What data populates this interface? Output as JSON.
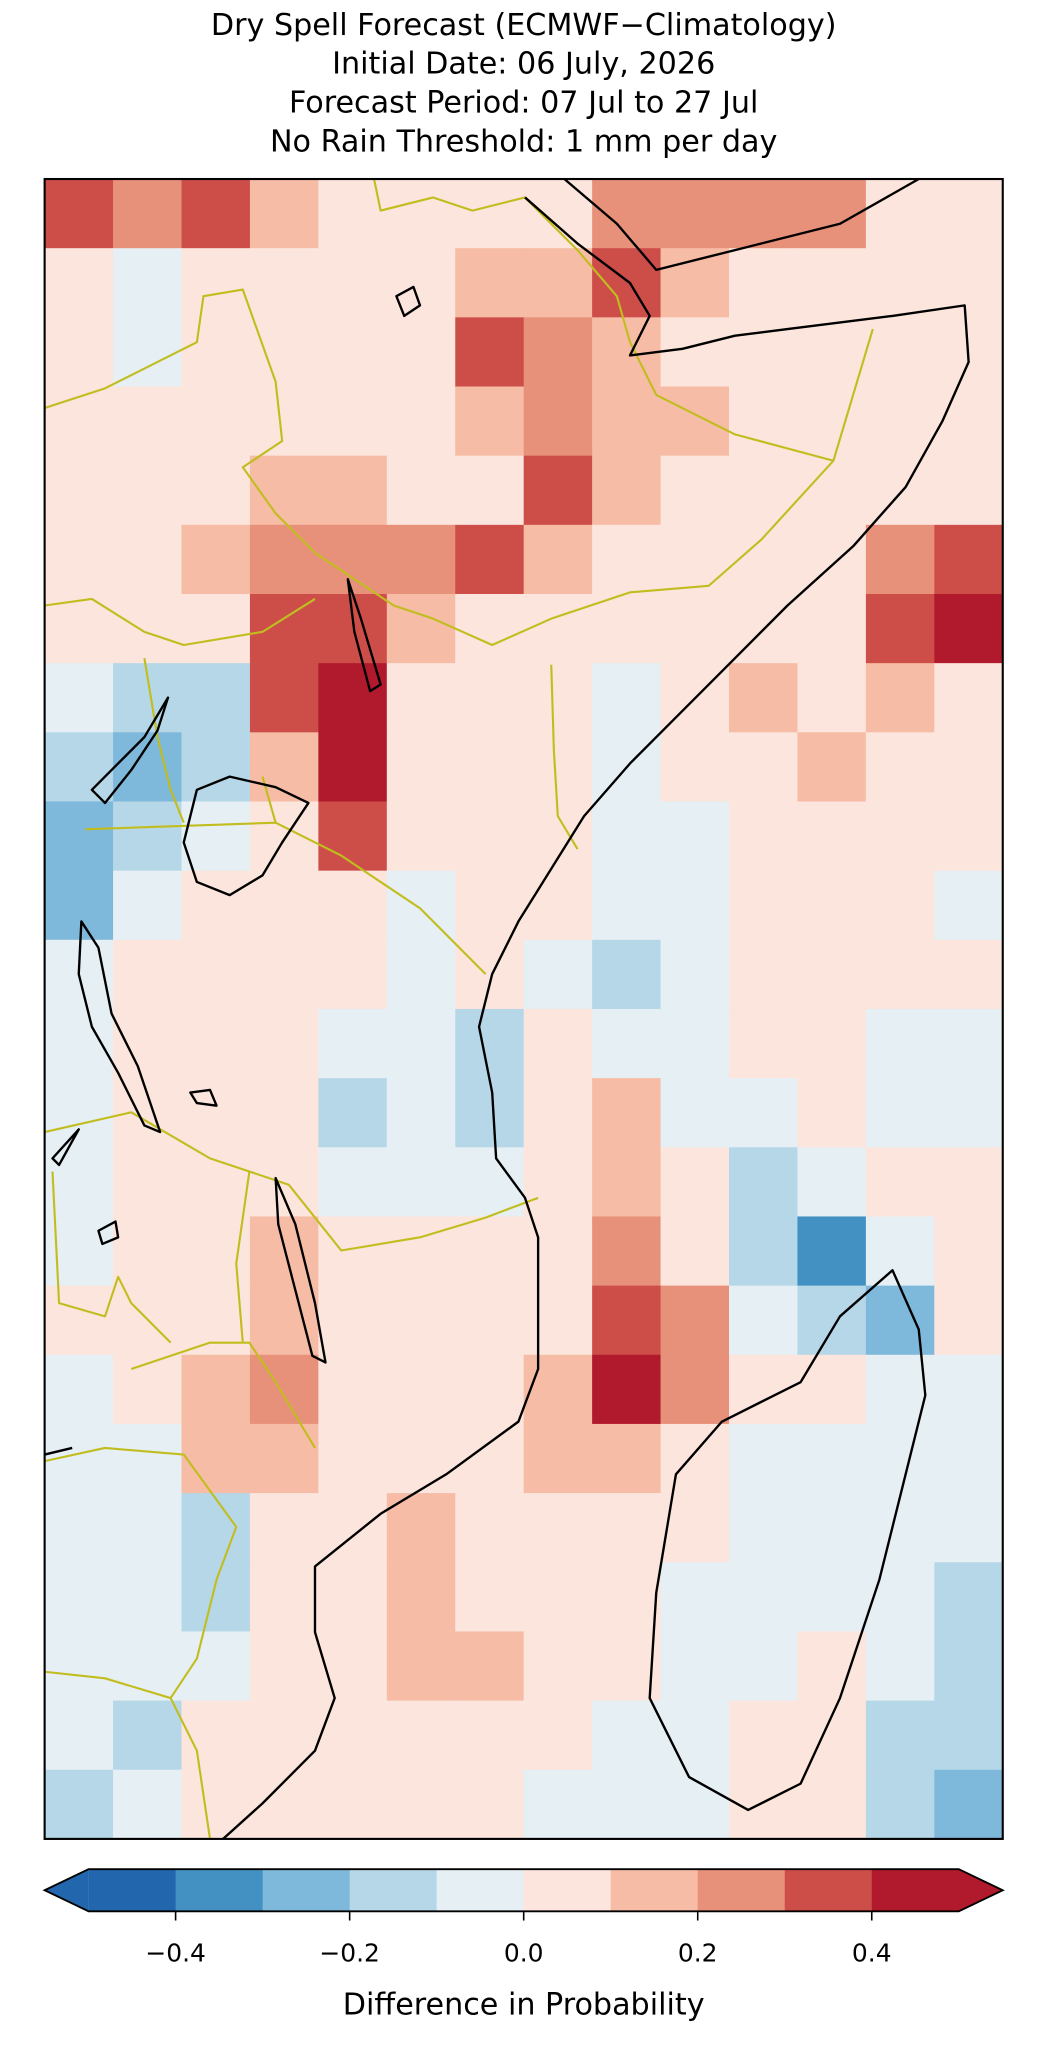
{
  "chart_data": {
    "type": "heatmap",
    "title": [
      "Dry Spell Forecast (ECMWF−Climatology)",
      "Initial Date: 06 July, 2026",
      "Forecast Period: 07 Jul to 27 Jul",
      "No Rain Threshold: 1 mm per day"
    ],
    "values": [
      [
        0.35,
        0.25,
        0.35,
        0.15,
        0.05,
        0.05,
        0.05,
        0.05,
        0.25,
        0.25,
        0.25,
        0.25,
        0.05,
        0.05
      ],
      [
        0.05,
        -0.05,
        0.05,
        0.05,
        0.05,
        0.05,
        0.15,
        0.15,
        0.35,
        0.15,
        0.05,
        0.05,
        0.05,
        0.05
      ],
      [
        0.05,
        -0.05,
        0.05,
        0.05,
        0.05,
        0.05,
        0.35,
        0.25,
        0.15,
        0.05,
        0.05,
        0.05,
        0.05,
        0.05
      ],
      [
        0.05,
        0.05,
        0.05,
        0.05,
        0.05,
        0.05,
        0.15,
        0.25,
        0.15,
        0.15,
        0.05,
        0.05,
        0.05,
        0.05
      ],
      [
        0.05,
        0.05,
        0.05,
        0.15,
        0.15,
        0.05,
        0.05,
        0.35,
        0.15,
        0.05,
        0.05,
        0.05,
        0.05,
        0.05
      ],
      [
        0.05,
        0.05,
        0.15,
        0.25,
        0.25,
        0.25,
        0.35,
        0.15,
        0.05,
        0.05,
        0.05,
        0.05,
        0.25,
        0.35
      ],
      [
        0.05,
        0.05,
        0.05,
        0.35,
        0.35,
        0.15,
        0.05,
        0.05,
        0.05,
        0.05,
        0.05,
        0.05,
        0.35,
        0.45
      ],
      [
        -0.05,
        -0.15,
        -0.15,
        0.35,
        0.45,
        0.05,
        0.05,
        0.05,
        -0.05,
        0.05,
        0.15,
        0.05,
        0.15,
        0.05
      ],
      [
        -0.15,
        -0.25,
        -0.15,
        0.15,
        0.45,
        0.05,
        0.05,
        0.05,
        -0.05,
        0.05,
        0.05,
        0.15,
        0.05,
        0.05
      ],
      [
        -0.25,
        -0.15,
        -0.05,
        0.05,
        0.35,
        0.05,
        0.05,
        0.05,
        -0.05,
        -0.05,
        0.05,
        0.05,
        0.05,
        0.05
      ],
      [
        -0.25,
        -0.05,
        0.05,
        0.05,
        0.05,
        -0.05,
        0.05,
        0.05,
        -0.05,
        -0.05,
        0.05,
        0.05,
        0.05,
        -0.05
      ],
      [
        -0.05,
        0.05,
        0.05,
        0.05,
        0.05,
        -0.05,
        0.05,
        -0.05,
        -0.15,
        -0.05,
        0.05,
        0.05,
        0.05,
        0.05
      ],
      [
        -0.05,
        0.05,
        0.05,
        0.05,
        -0.05,
        -0.05,
        -0.15,
        0.05,
        -0.05,
        -0.05,
        0.05,
        0.05,
        -0.05,
        -0.05
      ],
      [
        -0.05,
        0.05,
        0.05,
        0.05,
        -0.15,
        -0.05,
        -0.15,
        0.05,
        0.15,
        -0.05,
        -0.05,
        0.05,
        -0.05,
        -0.05
      ],
      [
        -0.05,
        0.05,
        0.05,
        0.05,
        -0.05,
        -0.05,
        -0.05,
        0.05,
        0.15,
        0.05,
        -0.15,
        -0.05,
        0.05,
        0.05
      ],
      [
        -0.05,
        0.05,
        0.05,
        0.15,
        0.05,
        0.05,
        0.05,
        0.05,
        0.25,
        0.05,
        -0.15,
        -0.35,
        -0.05,
        0.05
      ],
      [
        0.05,
        0.05,
        0.05,
        0.15,
        0.05,
        0.05,
        0.05,
        0.05,
        0.35,
        0.25,
        -0.05,
        -0.15,
        -0.25,
        0.05
      ],
      [
        -0.05,
        0.05,
        0.15,
        0.25,
        0.05,
        0.05,
        0.05,
        0.15,
        0.45,
        0.25,
        0.05,
        0.05,
        -0.05,
        -0.05
      ],
      [
        -0.05,
        -0.05,
        0.15,
        0.15,
        0.05,
        0.05,
        0.05,
        0.15,
        0.15,
        0.05,
        -0.05,
        -0.05,
        -0.05,
        -0.05
      ],
      [
        -0.05,
        -0.05,
        -0.15,
        0.05,
        0.05,
        0.15,
        0.05,
        0.05,
        0.05,
        0.05,
        -0.05,
        -0.05,
        -0.05,
        -0.05
      ],
      [
        -0.05,
        -0.05,
        -0.15,
        0.05,
        0.05,
        0.15,
        0.05,
        0.05,
        0.05,
        -0.05,
        -0.05,
        -0.05,
        -0.05,
        -0.15
      ],
      [
        -0.05,
        -0.05,
        -0.05,
        0.05,
        0.05,
        0.15,
        0.15,
        0.05,
        0.05,
        -0.05,
        -0.05,
        0.05,
        -0.05,
        -0.15
      ],
      [
        -0.05,
        -0.15,
        0.05,
        0.05,
        0.05,
        0.05,
        0.05,
        0.05,
        -0.05,
        -0.05,
        0.05,
        0.05,
        -0.15,
        -0.15
      ],
      [
        -0.15,
        -0.05,
        0.05,
        0.05,
        0.05,
        0.05,
        0.05,
        -0.05,
        -0.05,
        -0.05,
        0.05,
        0.05,
        -0.15,
        -0.25
      ]
    ],
    "colorbar": {
      "label": "Difference in Probability",
      "boundaries": [
        -0.5,
        -0.4,
        -0.3,
        -0.2,
        -0.1,
        0,
        0.1,
        0.2,
        0.3,
        0.4,
        0.5
      ],
      "colors": [
        "#2267ad",
        "#4291c2",
        "#7eb8da",
        "#b6d7e8",
        "#e5eff4",
        "#fbe5dc",
        "#f6bca5",
        "#e8917a",
        "#cd4e49",
        "#b11a2c"
      ],
      "ticks": [
        {
          "value": -0.4,
          "label": "−0.4"
        },
        {
          "value": -0.2,
          "label": "−0.2"
        },
        {
          "value": 0,
          "label": "0.0"
        },
        0.2,
        0.4
      ],
      "extend": "both"
    }
  }
}
